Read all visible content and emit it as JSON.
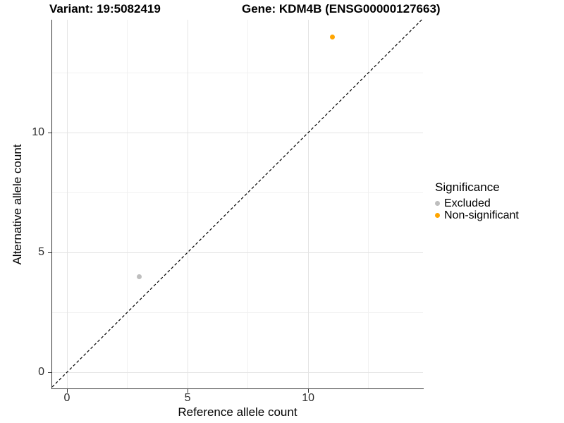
{
  "chart_data": {
    "type": "scatter",
    "titles": {
      "left": "Variant: 19:5082419",
      "right": "Gene: KDM4B (ENSG00000127663)"
    },
    "xlabel": "Reference allele count",
    "ylabel": "Alternative allele count",
    "xlim": [
      -0.614,
      14.76
    ],
    "ylim": [
      -0.676,
      14.71
    ],
    "x_ticks": [
      0,
      5,
      10
    ],
    "y_ticks": [
      0,
      5,
      10
    ],
    "x_minor_ticks": [
      2.5,
      7.5,
      12.5
    ],
    "y_minor_ticks": [
      2.5,
      7.5,
      12.5
    ],
    "grid": true,
    "legend_position": "right",
    "reference_line": {
      "slope": 1,
      "intercept": 0,
      "style": "dashed",
      "color": "#000000"
    },
    "legend": {
      "title": "Significance",
      "items": [
        {
          "label": "Excluded",
          "color": "#BEBEBE"
        },
        {
          "label": "Non-significant",
          "color": "#FFA500"
        }
      ]
    },
    "series": [
      {
        "name": "Excluded",
        "color": "#BEBEBE",
        "points": [
          {
            "x": 3,
            "y": 4
          }
        ]
      },
      {
        "name": "Non-significant",
        "color": "#FFA500",
        "points": [
          {
            "x": 11,
            "y": 14
          }
        ]
      }
    ],
    "colors": {
      "grid_major": "#e4e4e4",
      "grid_minor": "#f1f1f1",
      "axis_line": "#333333",
      "tick_mark": "#333333",
      "tick_text": "#2b2b2b",
      "background": "#ffffff"
    }
  }
}
